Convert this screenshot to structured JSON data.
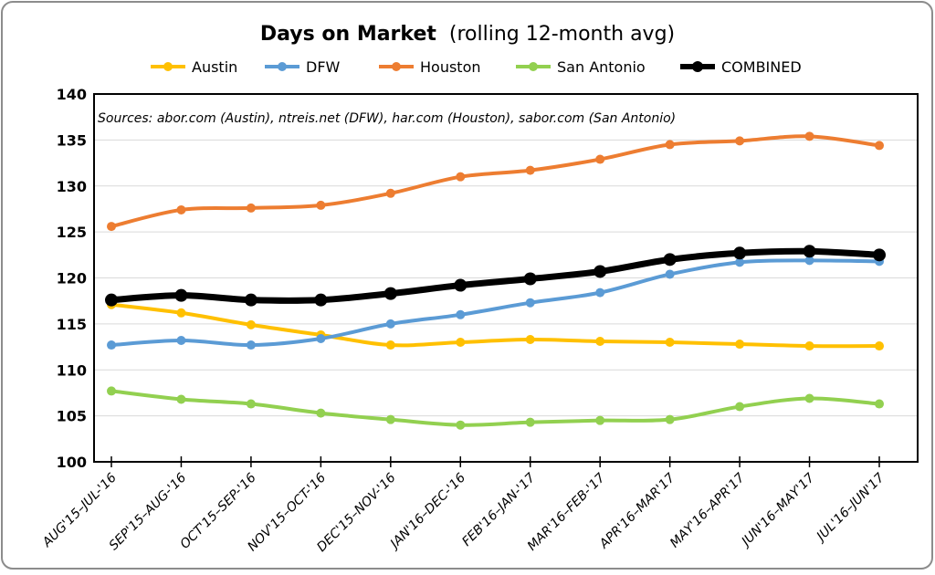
{
  "chart_data": {
    "type": "line",
    "title": "Days on Market",
    "subtitle": "(rolling 12-month avg)",
    "annotation": "Sources:  abor.com (Austin), ntreis.net (DFW), har.com (Houston), sabor.com (San Antonio)",
    "xlabel": "",
    "ylabel": "",
    "ylim": [
      100,
      140
    ],
    "yticks": [
      "100",
      "105",
      "110",
      "115",
      "120",
      "125",
      "130",
      "135",
      "140"
    ],
    "grid": true,
    "legend": "top",
    "categories": [
      "AUG'15–JUL-'16",
      "SEP'15–AUG-'16",
      "OCT'15–SEP-'16",
      "NOV'15–OCT-'16",
      "DEC'15–NOV-'16",
      "JAN'16–DEC-'16",
      "FEB'16–JAN-'17",
      "MAR'16–FEB-'17",
      "APR'16–MAR'17",
      "MAY'16–APR'17",
      "JUN'16–MAY'17",
      "JUL'16–JUN'17"
    ],
    "series": [
      {
        "name": "Austin",
        "color": "#FFC000",
        "values": [
          117.1,
          116.2,
          114.9,
          113.8,
          112.7,
          113.0,
          113.3,
          113.1,
          113.0,
          112.8,
          112.6,
          112.6
        ]
      },
      {
        "name": "DFW",
        "color": "#5B9BD5",
        "values": [
          112.7,
          113.2,
          112.7,
          113.4,
          115.0,
          116.0,
          117.3,
          118.4,
          120.4,
          121.7,
          121.9,
          121.8
        ]
      },
      {
        "name": "Houston",
        "color": "#ED7D31",
        "values": [
          125.6,
          127.4,
          127.6,
          127.9,
          129.2,
          131.0,
          131.7,
          132.9,
          134.5,
          134.9,
          135.4,
          134.4
        ]
      },
      {
        "name": "San Antonio",
        "color": "#92D050",
        "values": [
          107.7,
          106.8,
          106.3,
          105.3,
          104.6,
          104.0,
          104.3,
          104.5,
          104.6,
          106.0,
          106.9,
          106.3
        ]
      },
      {
        "name": "COMBINED",
        "color": "#000000",
        "values": [
          117.6,
          118.1,
          117.6,
          117.6,
          118.3,
          119.2,
          119.9,
          120.7,
          122.0,
          122.7,
          122.9,
          122.5
        ]
      }
    ]
  }
}
